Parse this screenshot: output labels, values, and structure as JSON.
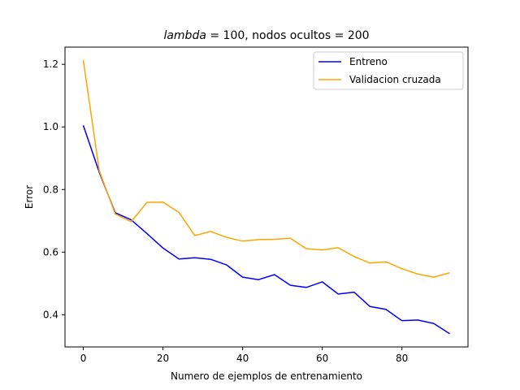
{
  "chart_data": {
    "type": "line",
    "title_italic": "lambda",
    "title_rest": " = 100, nodos ocultos = 200",
    "xlabel": "Numero de ejemplos de entrenamiento",
    "ylabel": "Error",
    "xlim": [
      -4.6,
      96.6
    ],
    "ylim": [
      0.297,
      1.255
    ],
    "xticks": [
      0,
      20,
      40,
      60,
      80
    ],
    "yticks": [
      0.4,
      0.6,
      0.8,
      1.0,
      1.2
    ],
    "ytick_labels": [
      "0.4",
      "0.6",
      "0.8",
      "1.0",
      "1.2"
    ],
    "grid": false,
    "legend_placement": "top-right",
    "x": [
      0,
      4,
      8,
      12,
      16,
      20,
      24,
      28,
      32,
      36,
      40,
      44,
      48,
      52,
      56,
      60,
      64,
      68,
      72,
      76,
      80,
      84,
      88,
      92
    ],
    "series": [
      {
        "name": "Entreno",
        "color": "#0000ff",
        "values": [
          1.005,
          0.855,
          0.726,
          0.703,
          0.659,
          0.613,
          0.578,
          0.582,
          0.577,
          0.559,
          0.52,
          0.512,
          0.528,
          0.494,
          0.487,
          0.505,
          0.466,
          0.472,
          0.426,
          0.417,
          0.381,
          0.383,
          0.372,
          0.339
        ]
      },
      {
        "name": "Validacion cruzada",
        "color": "#ffa500",
        "values": [
          1.213,
          0.86,
          0.722,
          0.697,
          0.759,
          0.76,
          0.727,
          0.653,
          0.666,
          0.647,
          0.635,
          0.64,
          0.641,
          0.644,
          0.611,
          0.607,
          0.614,
          0.586,
          0.565,
          0.569,
          0.547,
          0.53,
          0.52,
          0.534
        ]
      }
    ]
  }
}
